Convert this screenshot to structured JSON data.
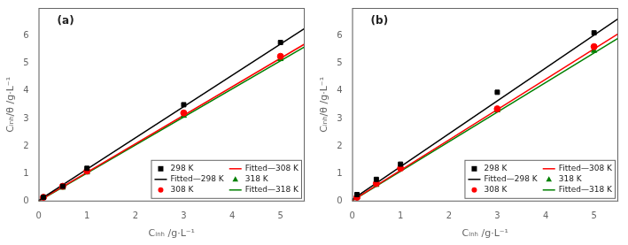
{
  "chart_data": [
    {
      "type": "scatter",
      "title": "(a)",
      "xlabel": "Cᵢₙₕ /g·L⁻¹",
      "ylabel": "Cᵢₙₕ/θ /g·L⁻¹",
      "xlim": [
        0,
        5.5
      ],
      "ylim": [
        0,
        7
      ],
      "xticks": [
        0,
        1,
        2,
        3,
        4,
        5
      ],
      "yticks": [
        0,
        1,
        2,
        3,
        4,
        5,
        6
      ],
      "grid": false,
      "legend": "lower right",
      "series": [
        {
          "name": "298 K",
          "type": "scatter",
          "color": "black",
          "marker": "square",
          "x": [
            0.1,
            0.5,
            1.0,
            3.0,
            5.0
          ],
          "values": [
            0.15,
            0.55,
            1.2,
            3.5,
            5.75
          ]
        },
        {
          "name": "Fitted—298 K",
          "type": "line",
          "color": "black",
          "line_style": "solid",
          "x": [
            0,
            5.5
          ],
          "values": [
            0.04,
            6.2605
          ]
        },
        {
          "name": "308 K",
          "type": "scatter",
          "color": "red",
          "marker": "circle",
          "x": [
            0.1,
            0.5,
            1.0,
            3.0,
            5.0
          ],
          "values": [
            0.15,
            0.55,
            1.1,
            3.2,
            5.25
          ]
        },
        {
          "name": "Fitted—308 K",
          "type": "line",
          "color": "red",
          "line_style": "solid",
          "x": [
            0,
            5.5
          ],
          "values": [
            0.02,
            5.696
          ]
        },
        {
          "name": "318 K",
          "type": "scatter",
          "color": "green",
          "marker": "triangle",
          "x": [
            0.1,
            0.5,
            1.0,
            3.0,
            5.0
          ],
          "values": [
            0.15,
            0.5,
            1.05,
            3.1,
            5.15
          ]
        },
        {
          "name": "Fitted—318 K",
          "type": "line",
          "color": "green",
          "line_style": "solid",
          "x": [
            0,
            5.5
          ],
          "values": [
            0.01,
            5.5925
          ]
        }
      ]
    },
    {
      "type": "scatter",
      "title": "(b)",
      "xlabel": "Cᵢₙₕ /g·L⁻¹",
      "ylabel": "Cᵢₙₕ/θ /g·L⁻¹",
      "xlim": [
        0,
        5.5
      ],
      "ylim": [
        0,
        7
      ],
      "xticks": [
        0,
        1,
        2,
        3,
        4,
        5
      ],
      "yticks": [
        0,
        1,
        2,
        3,
        4,
        5,
        6
      ],
      "grid": false,
      "legend": "lower right",
      "series": [
        {
          "name": "298 K",
          "type": "scatter",
          "color": "black",
          "marker": "square",
          "x": [
            0.1,
            0.5,
            1.0,
            3.0,
            5.0
          ],
          "values": [
            0.25,
            0.8,
            1.35,
            3.95,
            6.1
          ]
        },
        {
          "name": "Fitted—298 K",
          "type": "line",
          "color": "black",
          "line_style": "solid",
          "x": [
            0,
            5.5
          ],
          "values": [
            0.07,
            6.615
          ]
        },
        {
          "name": "308 K",
          "type": "scatter",
          "color": "red",
          "marker": "circle",
          "x": [
            0.1,
            0.5,
            1.0,
            3.0,
            5.0
          ],
          "values": [
            0.15,
            0.65,
            1.2,
            3.35,
            5.6
          ]
        },
        {
          "name": "Fitted—308 K",
          "type": "line",
          "color": "red",
          "line_style": "solid",
          "x": [
            0,
            5.5
          ],
          "values": [
            0.03,
            6.069
          ]
        },
        {
          "name": "318 K",
          "type": "scatter",
          "color": "green",
          "marker": "triangle",
          "x": [
            0.1,
            0.5,
            1.0,
            3.0,
            5.0
          ],
          "values": [
            0.15,
            0.6,
            1.2,
            3.3,
            5.45
          ]
        },
        {
          "name": "Fitted—318 K",
          "type": "line",
          "color": "green",
          "line_style": "solid",
          "x": [
            0,
            5.5
          ],
          "values": [
            0.025,
            5.91
          ]
        }
      ]
    }
  ]
}
